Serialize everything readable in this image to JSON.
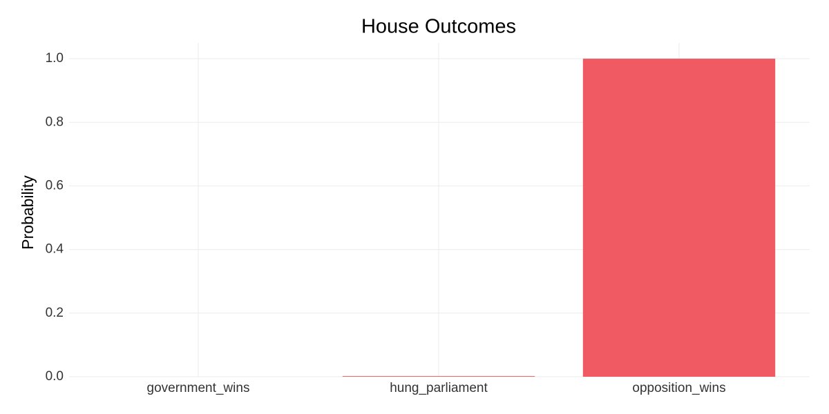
{
  "chart_data": {
    "type": "bar",
    "title": "House Outcomes",
    "y_label": "Probability",
    "categories": [
      "government_wins",
      "hung_parliament",
      "opposition_wins"
    ],
    "values": [
      0,
      0.002,
      1.0
    ],
    "color": "#ef5a63",
    "ylim": [
      0,
      1.05
    ],
    "yticks": [
      {
        "value": 0,
        "label": "0.0"
      },
      0.2,
      0.4,
      0.6,
      0.8,
      {
        "value": 1,
        "label": "1.0"
      }
    ],
    "grid": true
  }
}
